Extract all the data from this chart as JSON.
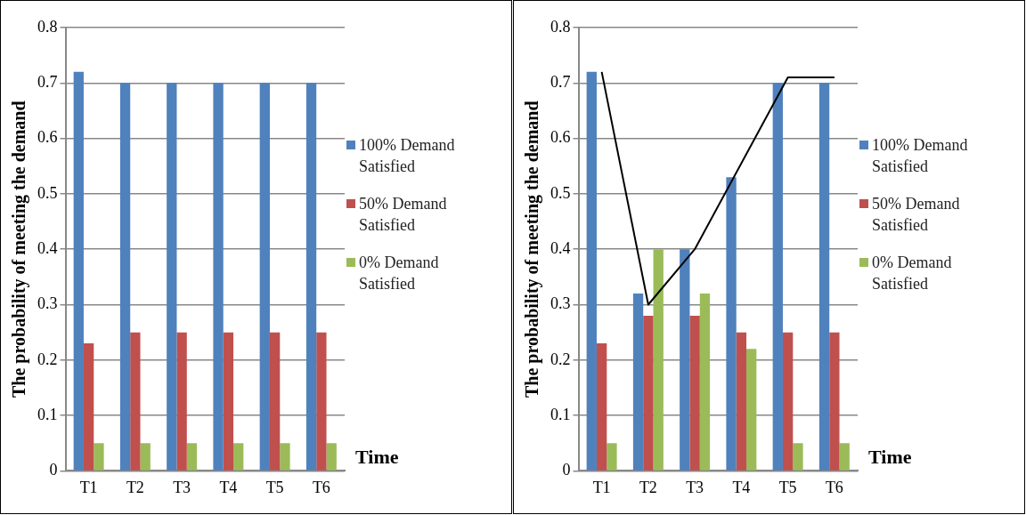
{
  "chart_data": [
    {
      "type": "bar",
      "categories": [
        "T1",
        "T2",
        "T3",
        "T4",
        "T5",
        "T6"
      ],
      "xlabel": "Time",
      "ylabel": "The probability of meeting the demand",
      "ylim": [
        0,
        0.8
      ],
      "yticks": [
        0,
        0.1,
        0.2,
        0.3,
        0.4,
        0.5,
        0.6,
        0.7,
        0.8
      ],
      "grid": "y",
      "legend": "right",
      "series": [
        {
          "name": "100% Demand Satisfied",
          "color": "#4f81bd",
          "values": [
            0.72,
            0.7,
            0.7,
            0.7,
            0.7,
            0.7
          ]
        },
        {
          "name": "50% Demand Satisfied",
          "color": "#c0504d",
          "values": [
            0.23,
            0.25,
            0.25,
            0.25,
            0.25,
            0.25
          ]
        },
        {
          "name": "0% Demand Satisfied",
          "color": "#9bbb59",
          "values": [
            0.05,
            0.05,
            0.05,
            0.05,
            0.05,
            0.05
          ]
        }
      ]
    },
    {
      "type": "bar",
      "categories": [
        "T1",
        "T2",
        "T3",
        "T4",
        "T5",
        "T6"
      ],
      "xlabel": "Time",
      "ylabel": "The probability of meeting the demand",
      "ylim": [
        0,
        0.8
      ],
      "yticks": [
        0,
        0.1,
        0.2,
        0.3,
        0.4,
        0.5,
        0.6,
        0.7,
        0.8
      ],
      "grid": "y",
      "legend": "right",
      "series": [
        {
          "name": "100% Demand Satisfied",
          "color": "#4f81bd",
          "values": [
            0.72,
            0.32,
            0.4,
            0.53,
            0.7,
            0.7
          ]
        },
        {
          "name": "50% Demand Satisfied",
          "color": "#c0504d",
          "values": [
            0.23,
            0.28,
            0.28,
            0.25,
            0.25,
            0.25
          ]
        },
        {
          "name": "0% Demand Satisfied",
          "color": "#9bbb59",
          "values": [
            0.05,
            0.4,
            0.32,
            0.22,
            0.05,
            0.05
          ]
        },
        {
          "type": "line",
          "color": "#000000",
          "marker": "none",
          "x": [
            "T1",
            "T2",
            "T3",
            "T5",
            "T6"
          ],
          "values": [
            0.72,
            0.3,
            0.4,
            0.71,
            0.71
          ]
        }
      ]
    }
  ]
}
